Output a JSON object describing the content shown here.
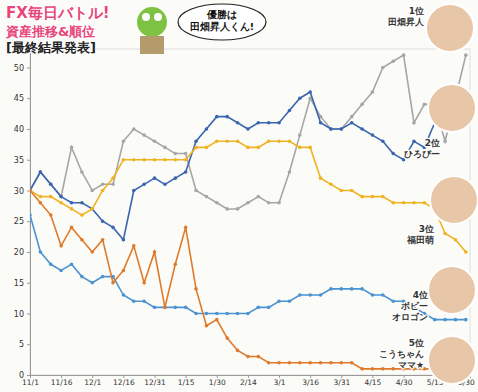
{
  "chart_data": {
    "type": "line",
    "title": "FX毎日バトル!",
    "subtitle": [
      "資産推移&順位",
      "[最終結果発表]"
    ],
    "annotations": [
      {
        "lines": [
          "優勝は",
          "田畑昇人くん!"
        ]
      },
      {
        "lines": [
          "1位",
          "田畑昇人"
        ]
      },
      {
        "lines": [
          "2位",
          "ひろぴー"
        ]
      },
      {
        "lines": [
          "3位",
          "福田萌"
        ]
      },
      {
        "lines": [
          "4位",
          "ボビー",
          "オロゴン"
        ]
      },
      {
        "lines": [
          "5位",
          "こうちゃん",
          "ママ★"
        ]
      }
    ],
    "x": [
      0,
      5,
      10,
      15,
      20,
      25,
      30,
      35,
      40,
      45,
      50,
      55,
      60,
      65,
      70,
      75,
      80,
      85,
      90,
      95,
      100,
      105,
      110,
      115,
      120,
      125,
      130,
      135,
      140,
      145,
      150,
      155,
      160,
      165,
      170,
      175,
      180,
      185,
      190,
      195,
      200,
      205,
      210
    ],
    "xlim": [
      0,
      212
    ],
    "xticks": [
      {
        "value": 0,
        "label": "11/1"
      },
      {
        "value": 15,
        "label": "11/16"
      },
      {
        "value": 30,
        "label": "12/1"
      },
      {
        "value": 45,
        "label": "12/16"
      },
      {
        "value": 60,
        "label": "12/31"
      },
      {
        "value": 75,
        "label": "1/15"
      },
      {
        "value": 90,
        "label": "1/30"
      },
      {
        "value": 105,
        "label": "2/14"
      },
      {
        "value": 120,
        "label": "3/1"
      },
      {
        "value": 135,
        "label": "3/16"
      },
      {
        "value": 150,
        "label": "3/31"
      },
      {
        "value": 165,
        "label": "4/15"
      },
      {
        "value": 180,
        "label": "4/30"
      },
      {
        "value": 195,
        "label": "5/15"
      },
      {
        "value": 210,
        "label": "5/30"
      }
    ],
    "ylim": [
      0,
      53
    ],
    "yticks": [
      0,
      5,
      10,
      15,
      20,
      25,
      30,
      35,
      40,
      45,
      50
    ],
    "grid": false,
    "marker": "circle",
    "series": [
      {
        "color": "#a6a6a6",
        "values": [
          30,
          33,
          31,
          29,
          37,
          33,
          30,
          31,
          31,
          38,
          40,
          39,
          38,
          37,
          36,
          36,
          30,
          29,
          28,
          27,
          27,
          28,
          29,
          28,
          28,
          33,
          39,
          45,
          42,
          40,
          40,
          42,
          44,
          46,
          50,
          51,
          52,
          41,
          44,
          44,
          38,
          45,
          52
        ]
      },
      {
        "color": "#3a66b0",
        "values": [
          30,
          33,
          31,
          29,
          28,
          28,
          27,
          25,
          24,
          22,
          30,
          31,
          32,
          31,
          32,
          33,
          38,
          40,
          42,
          42,
          41,
          40,
          41,
          41,
          41,
          43,
          45,
          46,
          41,
          40,
          40,
          41,
          40,
          39,
          38,
          36,
          35,
          38,
          37,
          41,
          42,
          42,
          42
        ]
      },
      {
        "color": "#f0b323",
        "values": [
          30,
          29,
          29,
          28,
          27,
          26,
          27,
          30,
          32,
          35,
          35,
          35,
          35,
          35,
          35,
          35,
          37,
          37,
          38,
          38,
          38,
          37,
          37,
          38,
          38,
          38,
          37,
          37,
          32,
          31,
          30,
          30,
          29,
          29,
          29,
          28,
          28,
          28,
          28,
          27,
          23,
          22,
          20
        ]
      },
      {
        "color": "#4b93d1",
        "values": [
          26,
          20,
          18,
          17,
          18,
          16,
          15,
          16,
          16,
          13,
          12,
          12,
          11,
          11,
          11,
          11,
          10,
          10,
          10,
          10,
          10,
          10,
          11,
          11,
          12,
          12,
          13,
          13,
          13,
          14,
          14,
          14,
          14,
          13,
          13,
          12,
          12,
          11,
          10,
          9,
          9,
          9,
          9
        ]
      },
      {
        "color": "#e07a2b",
        "values": [
          30,
          28,
          26,
          21,
          24,
          22,
          20,
          22,
          15,
          17,
          21,
          15,
          20,
          11,
          18,
          24,
          14,
          8,
          9,
          6,
          4,
          3,
          3,
          2,
          2,
          2,
          2,
          2,
          2,
          2,
          2,
          2,
          1,
          1,
          1,
          1,
          1,
          1,
          1,
          1,
          1,
          1,
          1
        ]
      }
    ]
  }
}
